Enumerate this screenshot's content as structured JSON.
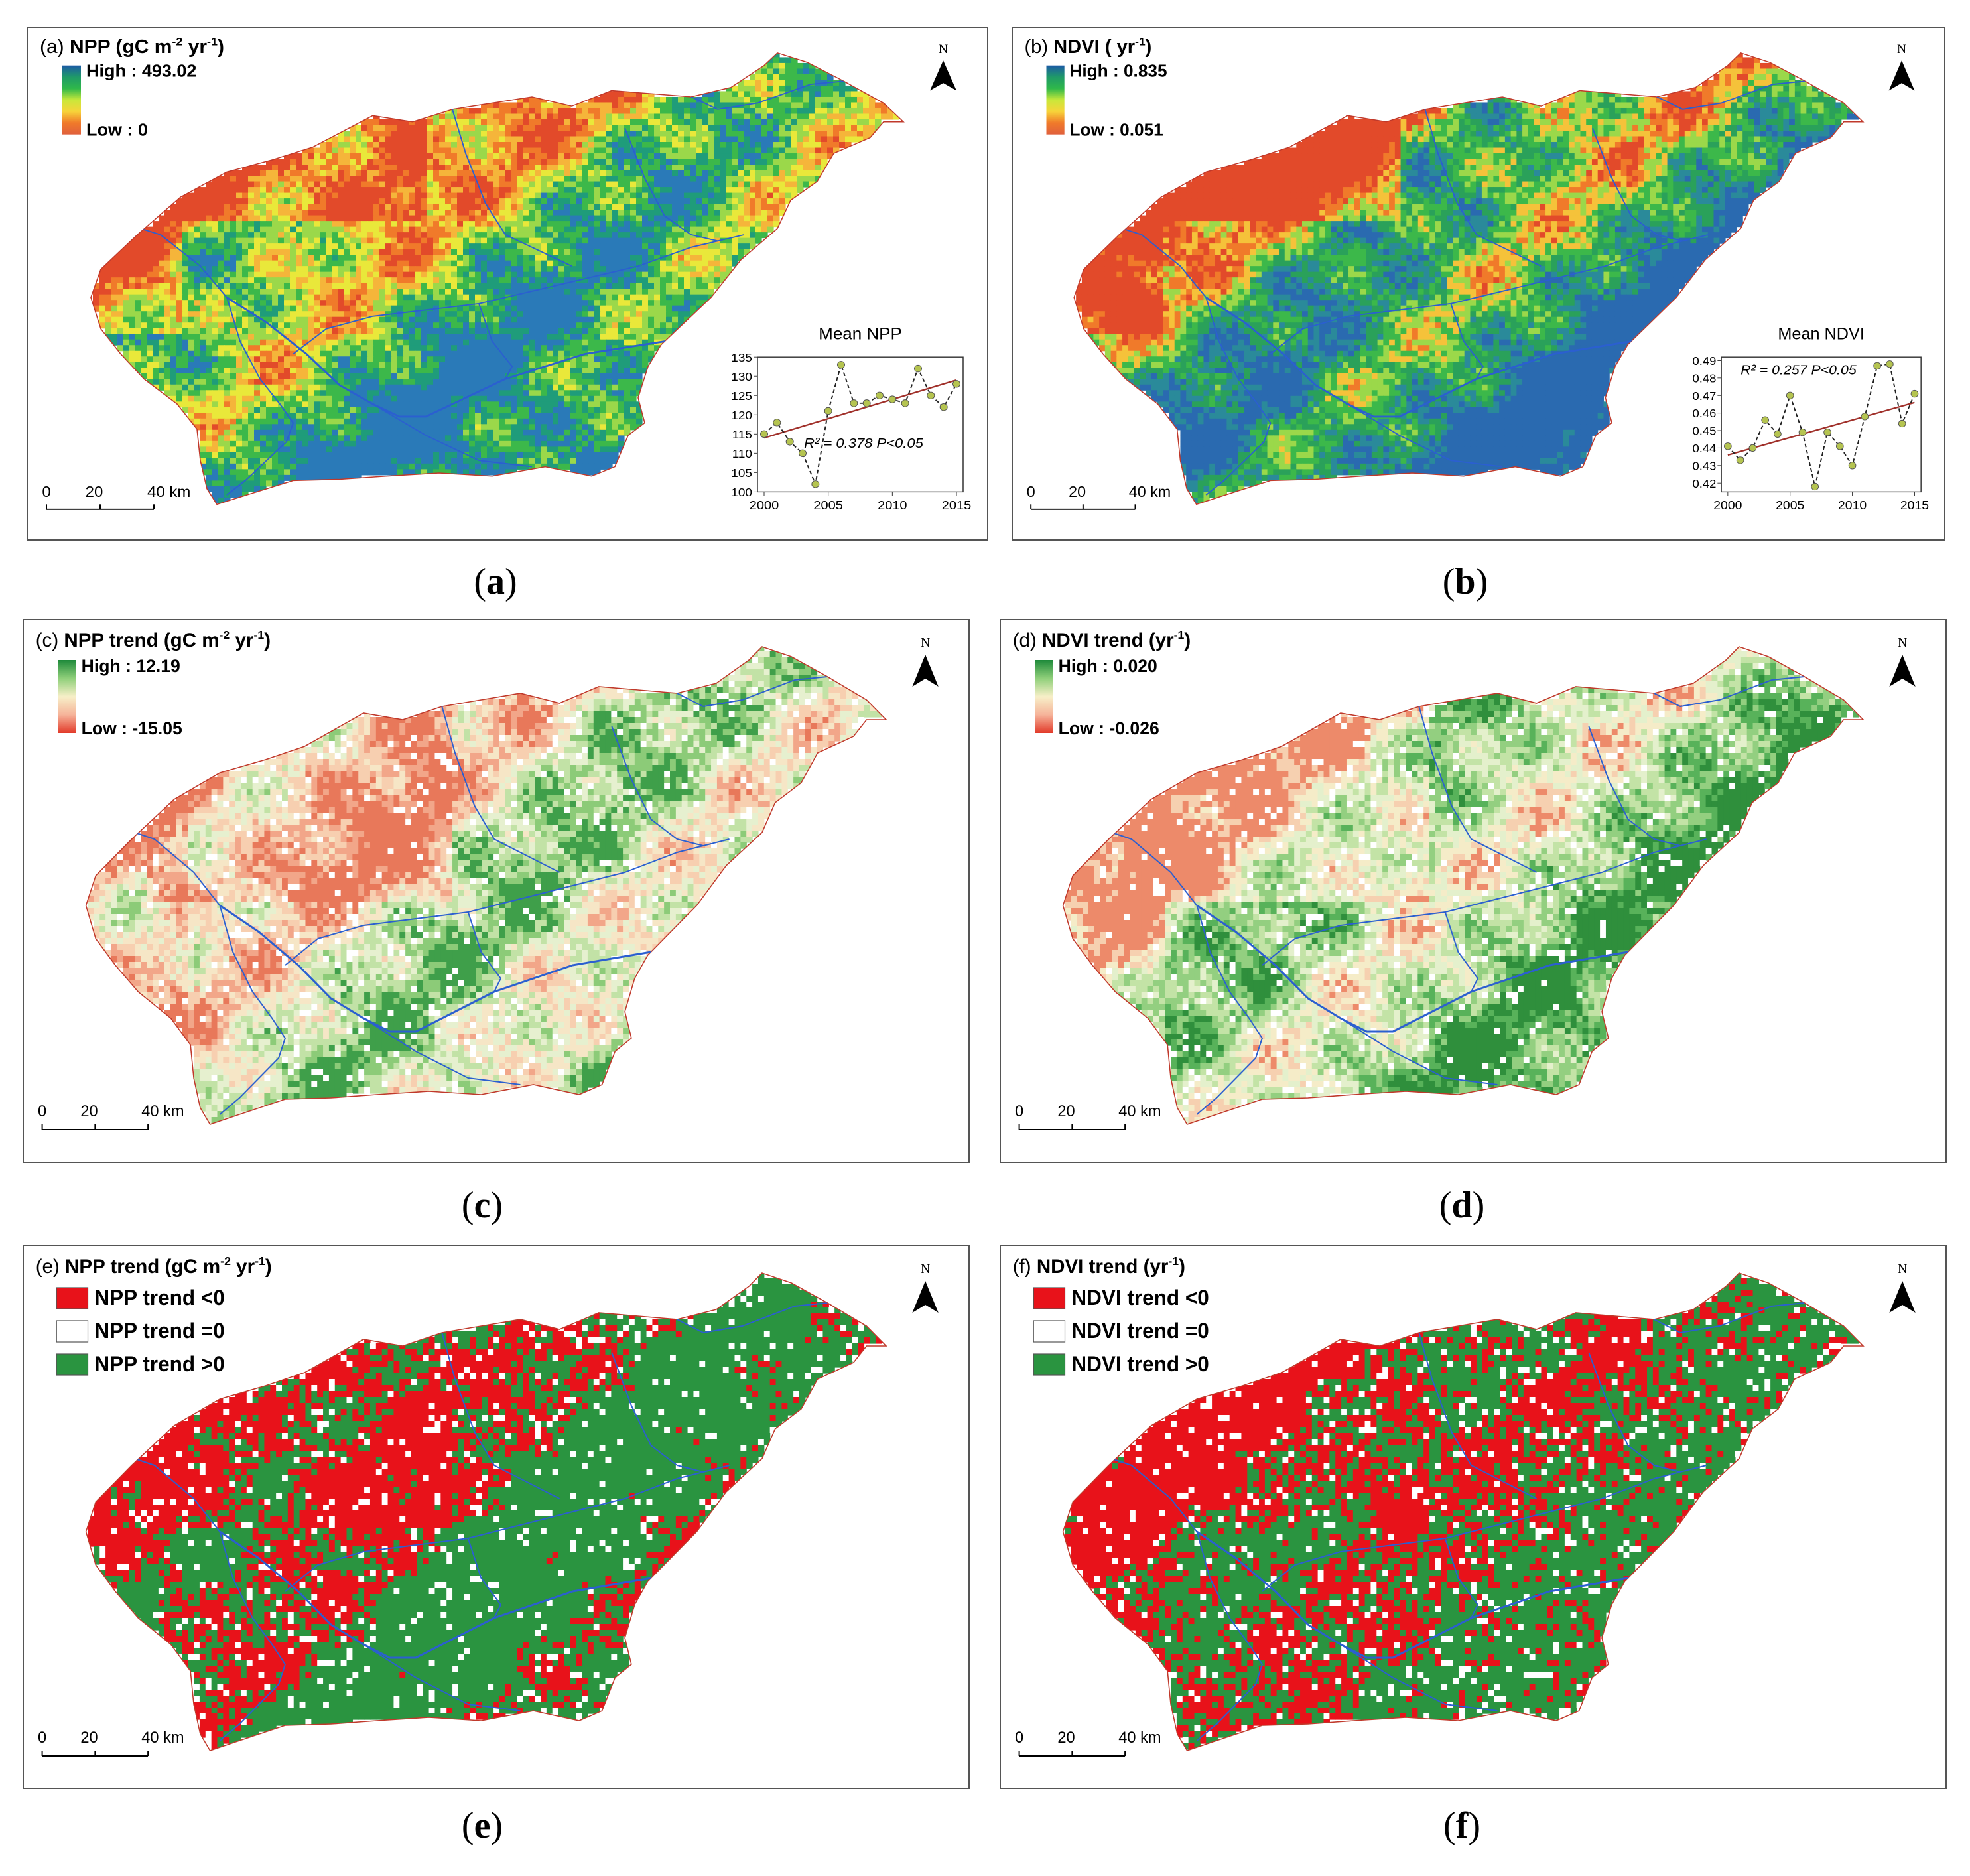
{
  "panels": [
    {
      "id": "a",
      "type": "continuous",
      "tag": "(a)",
      "title_main": "NPP (gC m",
      "sup1": "-2",
      "mid": " yr",
      "sup2": "-1",
      "close": ")",
      "legend_high": "High : 493.02",
      "legend_low": "Low : 0",
      "ramp": [
        "#1c5aa6",
        "#1f9a68",
        "#2fb84a",
        "#c9e83a",
        "#f7d43a",
        "#f07a2a",
        "#e0603c"
      ],
      "map_palette": [
        "#e24a2a",
        "#f07a2a",
        "#f5b53a",
        "#e9e83a",
        "#9bd84a",
        "#3cb84a",
        "#1f9c7a",
        "#2a7ab8"
      ],
      "north": "N",
      "scale": [
        "0",
        "20",
        "40 km"
      ],
      "caption": "a",
      "inset": {
        "title": "Mean NPP",
        "annotation": "R² = 0.378 P<0.05",
        "x_ticks": [
          "2000",
          "2005",
          "2010",
          "2015"
        ],
        "y_ticks": [
          "100",
          "105",
          "110",
          "115",
          "120",
          "125",
          "130",
          "135"
        ]
      }
    },
    {
      "id": "b",
      "type": "continuous",
      "tag": "(b)",
      "title_main": "NDVI ( yr",
      "sup1": "-1",
      "mid": "",
      "sup2": "",
      "close": ")",
      "legend_high": "High : 0.835",
      "legend_low": "Low : 0.051",
      "ramp": [
        "#1c5aa6",
        "#1f9a68",
        "#2fb84a",
        "#c9e83a",
        "#f7d43a",
        "#f07a2a",
        "#e0603c"
      ],
      "map_palette": [
        "#e24a2a",
        "#f07a2a",
        "#f5c23a",
        "#9bd84a",
        "#3cb84a",
        "#2aa15a",
        "#2a8a9a",
        "#2a6ab0"
      ],
      "north": "N",
      "scale": [
        "0",
        "20",
        "40 km"
      ],
      "caption": "b",
      "inset": {
        "title": "Mean NDVI",
        "annotation": "R² = 0.257 P<0.05",
        "x_ticks": [
          "2000",
          "2005",
          "2010",
          "2015"
        ],
        "y_ticks": [
          "0.42",
          "0.43",
          "0.44",
          "0.45",
          "0.46",
          "0.47",
          "0.48",
          "0.49"
        ]
      }
    },
    {
      "id": "c",
      "type": "continuous",
      "tag": "(c)",
      "title_main": "NPP trend (gC m",
      "sup1": "-2",
      "mid": " yr",
      "sup2": "-1",
      "close": ")",
      "legend_high": "High : 12.19",
      "legend_low": "Low : -15.05",
      "ramp": [
        "#1e8a3a",
        "#8fcf7a",
        "#f7efc8",
        "#f6b49a",
        "#e23a2a"
      ],
      "map_palette": [
        "#e8785a",
        "#f2a689",
        "#f7cfb0",
        "#f6e6c6",
        "#e6f0cf",
        "#c2e2a6",
        "#8ccb78",
        "#3f9f4a"
      ],
      "north": "N",
      "scale": [
        "0",
        "20",
        "40 km"
      ],
      "caption": "c"
    },
    {
      "id": "d",
      "type": "continuous",
      "tag": "(d)",
      "title_main": "NDVI trend (yr",
      "sup1": "-1",
      "mid": "",
      "sup2": "",
      "close": ")",
      "legend_high": "High : 0.020",
      "legend_low": "Low : -0.026",
      "ramp": [
        "#1e8a3a",
        "#8fcf7a",
        "#f7efc8",
        "#f6b49a",
        "#e23a2a"
      ],
      "map_palette": [
        "#ed8a6a",
        "#f6d0b0",
        "#f5ecc8",
        "#e4f0cc",
        "#c3e3a6",
        "#93cf80",
        "#58b25a",
        "#2f8f3c"
      ],
      "north": "N",
      "scale": [
        "0",
        "20",
        "40 km"
      ],
      "caption": "d"
    },
    {
      "id": "e",
      "type": "categorical",
      "tag": "(e)",
      "title_main": "NPP trend (gC m",
      "sup1": "-2",
      "mid": " yr",
      "sup2": "-1",
      "close": ")",
      "categories": [
        {
          "label": "NPP trend <0",
          "color": "#e8121a"
        },
        {
          "label": "NPP trend =0",
          "color": "#ffffff"
        },
        {
          "label": "NPP trend >0",
          "color": "#2a9440"
        }
      ],
      "north": "N",
      "scale": [
        "0",
        "20",
        "40 km"
      ],
      "caption": "e"
    },
    {
      "id": "f",
      "type": "categorical",
      "tag": "(f)",
      "title_main": "NDVI trend (yr",
      "sup1": "-1",
      "mid": "",
      "sup2": "",
      "close": ")",
      "categories": [
        {
          "label": "NDVI trend <0",
          "color": "#e8121a"
        },
        {
          "label": "NDVI trend =0",
          "color": "#ffffff"
        },
        {
          "label": "NDVI trend >0",
          "color": "#2a9440"
        }
      ],
      "north": "N",
      "scale": [
        "0",
        "20",
        "40 km"
      ],
      "caption": "f"
    }
  ],
  "chart_data": [
    {
      "type": "line",
      "title": "Mean NPP",
      "x": [
        2000,
        2001,
        2002,
        2003,
        2004,
        2005,
        2006,
        2007,
        2008,
        2009,
        2010,
        2011,
        2012,
        2013,
        2014,
        2015
      ],
      "series": [
        {
          "name": "Mean NPP",
          "values": [
            115,
            118,
            113,
            110,
            102,
            121,
            133,
            123,
            123,
            125,
            124,
            123,
            132,
            125,
            122,
            128
          ]
        }
      ],
      "trend_line": {
        "start": [
          2000,
          114
        ],
        "end": [
          2015,
          129
        ]
      },
      "annotation": "R² = 0.378 P<0.05",
      "xlim": [
        2000,
        2015
      ],
      "ylim": [
        100,
        135
      ],
      "xlabel": "",
      "ylabel": ""
    },
    {
      "type": "line",
      "title": "Mean NDVI",
      "x": [
        2000,
        2001,
        2002,
        2003,
        2004,
        2005,
        2006,
        2007,
        2008,
        2009,
        2010,
        2011,
        2012,
        2013,
        2014,
        2015
      ],
      "series": [
        {
          "name": "Mean NDVI",
          "values": [
            0.441,
            0.433,
            0.44,
            0.456,
            0.448,
            0.47,
            0.449,
            0.418,
            0.449,
            0.441,
            0.43,
            0.458,
            0.487,
            0.488,
            0.454,
            0.471
          ]
        }
      ],
      "trend_line": {
        "start": [
          2000,
          0.436
        ],
        "end": [
          2015,
          0.466
        ]
      },
      "annotation": "R² = 0.257 P<0.05",
      "xlim": [
        2000,
        2015
      ],
      "ylim": [
        0.415,
        0.492
      ],
      "xlabel": "",
      "ylabel": ""
    }
  ]
}
